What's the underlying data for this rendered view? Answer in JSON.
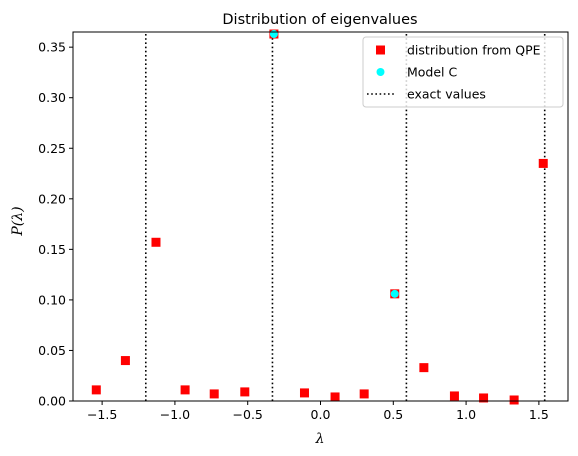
{
  "chart_data": {
    "type": "scatter",
    "title": "Distribution of eigenvalues",
    "xlabel": "λ",
    "ylabel": "P(λ)",
    "xlim": [
      -1.7,
      1.7
    ],
    "ylim": [
      0.0,
      0.365
    ],
    "xticks": [
      -1.5,
      -1.0,
      -0.5,
      0.0,
      0.5,
      1.0,
      1.5
    ],
    "xtick_labels": [
      "−1.5",
      "−1.0",
      "−0.5",
      "0.0",
      "0.5",
      "1.0",
      "1.5"
    ],
    "yticks": [
      0.0,
      0.05,
      0.1,
      0.15,
      0.2,
      0.25,
      0.3,
      0.35
    ],
    "ytick_labels": [
      "0.00",
      "0.05",
      "0.10",
      "0.15",
      "0.20",
      "0.25",
      "0.30",
      "0.35"
    ],
    "grid": false,
    "legend_position": "top-right",
    "series": [
      {
        "name": "distribution from QPE",
        "marker": "square",
        "color": "#ff0000",
        "x": [
          -1.54,
          -1.34,
          -1.13,
          -0.93,
          -0.73,
          -0.52,
          -0.32,
          -0.11,
          0.1,
          0.3,
          0.51,
          0.71,
          0.92,
          1.12,
          1.33,
          1.53
        ],
        "y": [
          0.011,
          0.04,
          0.157,
          0.011,
          0.007,
          0.009,
          0.363,
          0.008,
          0.004,
          0.007,
          0.106,
          0.033,
          0.005,
          0.003,
          0.001,
          0.235
        ]
      },
      {
        "name": "Model C",
        "marker": "circle",
        "color": "#00ffff",
        "x": [
          -0.32,
          0.51
        ],
        "y": [
          0.363,
          0.106
        ]
      },
      {
        "name": "exact values",
        "style": "dotted-vertical-lines",
        "color": "#000000",
        "x": [
          -1.2,
          -0.33,
          0.59,
          1.54
        ],
        "y_top": 0.363
      }
    ]
  }
}
